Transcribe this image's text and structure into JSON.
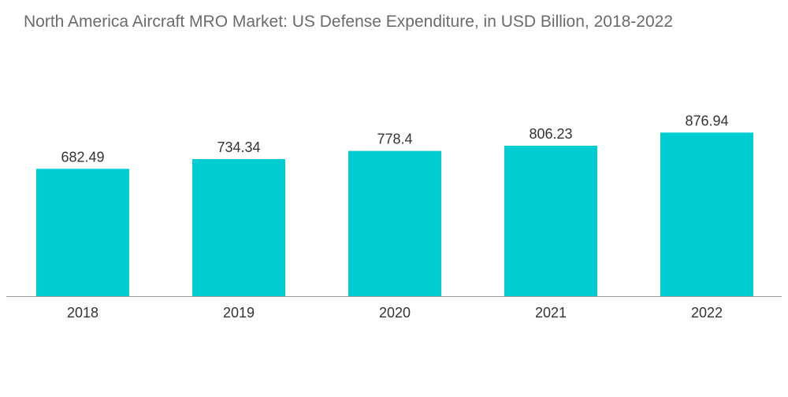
{
  "chart_data": {
    "type": "bar",
    "title": "North America Aircraft MRO Market: US Defense Expenditure, in USD Billion, 2018-2022",
    "xlabel": "",
    "ylabel": "",
    "categories": [
      "2018",
      "2019",
      "2020",
      "2021",
      "2022"
    ],
    "values": [
      682.49,
      734.34,
      778.4,
      806.23,
      876.94
    ],
    "value_labels": [
      "682.49",
      "734.34",
      "778.4",
      "806.23",
      "876.94"
    ],
    "ylim": [
      0,
      1000
    ],
    "grid": false,
    "legend": "none",
    "bar_color": "#00cdd2",
    "axis_color": "#9a9a9a",
    "text_color": "#333333",
    "title_color": "#6b6b6b"
  }
}
